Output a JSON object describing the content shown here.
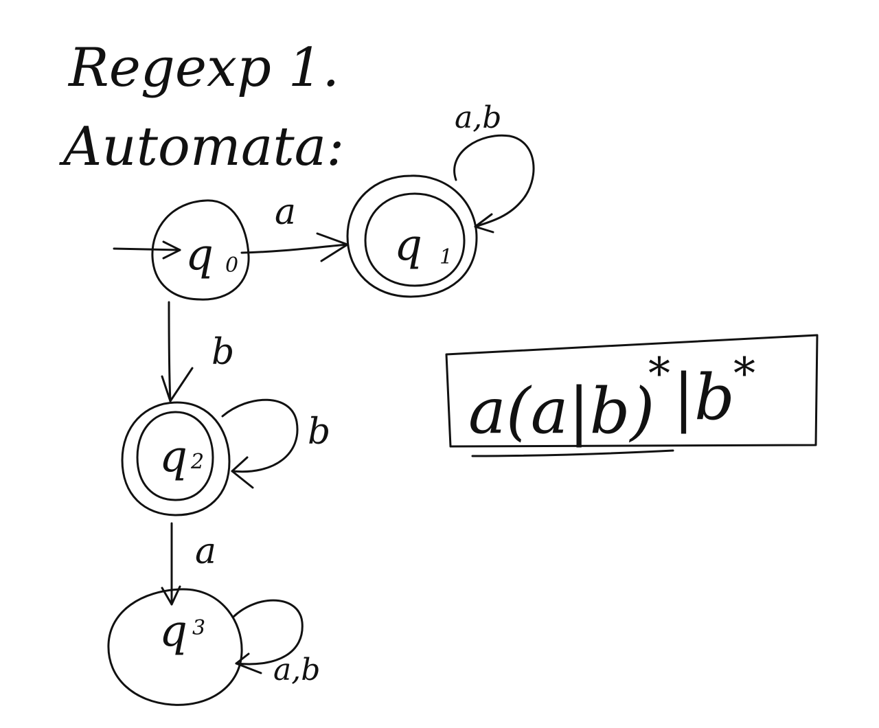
{
  "title": {
    "line1": "Regexp 1.",
    "line2": "Automata:"
  },
  "automaton": {
    "states": [
      {
        "id": "q0",
        "letter": "q",
        "subscript": "0",
        "accepting": false,
        "initial": true
      },
      {
        "id": "q1",
        "letter": "q",
        "subscript": "1",
        "accepting": true,
        "initial": false
      },
      {
        "id": "q2",
        "letter": "q",
        "subscript": "2",
        "accepting": true,
        "initial": false
      },
      {
        "id": "q3",
        "letter": "q",
        "subscript": "3",
        "accepting": false,
        "initial": false
      }
    ],
    "transitions": [
      {
        "from": "q0",
        "to": "q1",
        "label": "a"
      },
      {
        "from": "q0",
        "to": "q2",
        "label": "b"
      },
      {
        "from": "q1",
        "to": "q1",
        "label": "a,b"
      },
      {
        "from": "q2",
        "to": "q2",
        "label": "b"
      },
      {
        "from": "q2",
        "to": "q3",
        "label": "a"
      },
      {
        "from": "q3",
        "to": "q3",
        "label": "a,b"
      }
    ]
  },
  "regex": {
    "main": "a(a|b)",
    "star1": "*",
    "alt": "|b",
    "star2": "*"
  }
}
